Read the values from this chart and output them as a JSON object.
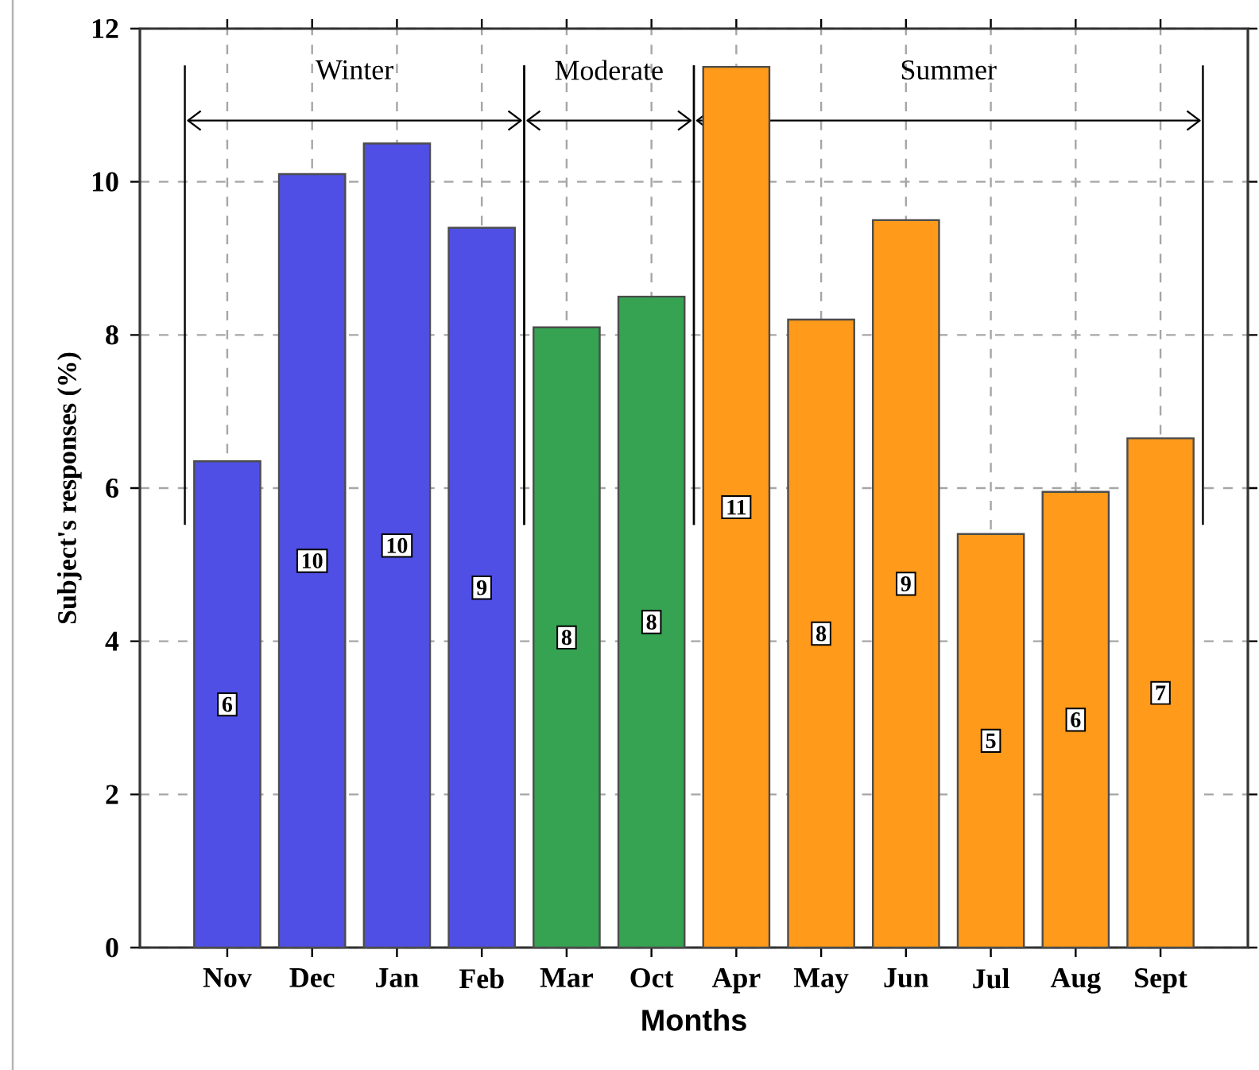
{
  "chart_data": {
    "type": "bar",
    "xlabel": "Months",
    "ylabel": "Subject's responses (%)",
    "categories": [
      "Nov",
      "Dec",
      "Jan",
      "Feb",
      "Mar",
      "Oct",
      "Apr",
      "May",
      "Jun",
      "Jul",
      "Aug",
      "Sept"
    ],
    "values": [
      6.35,
      10.1,
      10.5,
      9.4,
      8.1,
      8.5,
      11.5,
      8.2,
      9.5,
      5.4,
      5.95,
      6.65
    ],
    "colors": [
      "#4f4fe6",
      "#4f4fe6",
      "#4f4fe6",
      "#4f4fe6",
      "#35a352",
      "#35a352",
      "#ff9a1a",
      "#ff9a1a",
      "#ff9a1a",
      "#ff9a1a",
      "#ff9a1a",
      "#ff9a1a"
    ],
    "value_labels": [
      "6",
      "10",
      "10",
      "9",
      "8",
      "8",
      "11",
      "8",
      "9",
      "5",
      "6",
      "7"
    ],
    "ylim": [
      0,
      12
    ],
    "yticks": [
      0,
      2,
      4,
      6,
      8,
      10,
      12
    ],
    "grid": true,
    "annotations": [
      "Winter",
      "Moderate",
      "Summer"
    ]
  }
}
